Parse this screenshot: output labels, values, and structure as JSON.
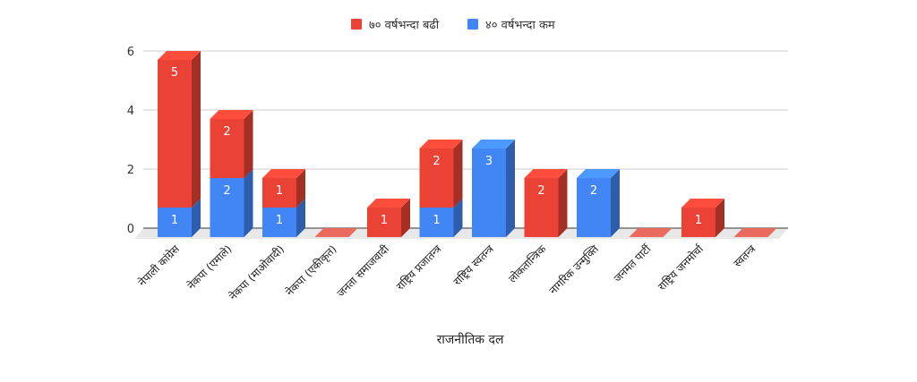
{
  "chart_data": {
    "type": "bar",
    "stacked": true,
    "style": "3d",
    "xlabel": "राजनीतिक दल",
    "ylabel": "",
    "ylim": [
      0,
      6
    ],
    "yticks": [
      "0",
      "2",
      "4",
      "6"
    ],
    "grid": true,
    "legend_position": "top",
    "categories": [
      "नेपाली कांग्रेस",
      "नेकपा (एमाले)",
      "नेकपा (माओवादी)",
      "नेकपा (एकीकृत)",
      "जनता समाजवादी",
      "राष्ट्रिय प्रजातन्त्र",
      "राष्ट्रिय स्वतन्त्र",
      "लोकतान्त्रिक",
      "नागरिक उन्मुक्ति",
      "जनमत पार्टी",
      "राष्ट्रिय जनमोर्चा",
      "स्वतन्त्र"
    ],
    "series": [
      {
        "name": "४० वर्षभन्दा कम",
        "color": "#4285f4",
        "values": [
          1,
          2,
          1,
          0,
          0,
          1,
          3,
          0,
          2,
          0,
          0,
          0
        ]
      },
      {
        "name": "७० वर्षभन्दा बढी",
        "color": "#ea4335",
        "values": [
          5,
          2,
          1,
          0,
          1,
          2,
          0,
          2,
          0,
          0,
          1,
          0
        ]
      }
    ],
    "legend_order": [
      1,
      0
    ]
  }
}
